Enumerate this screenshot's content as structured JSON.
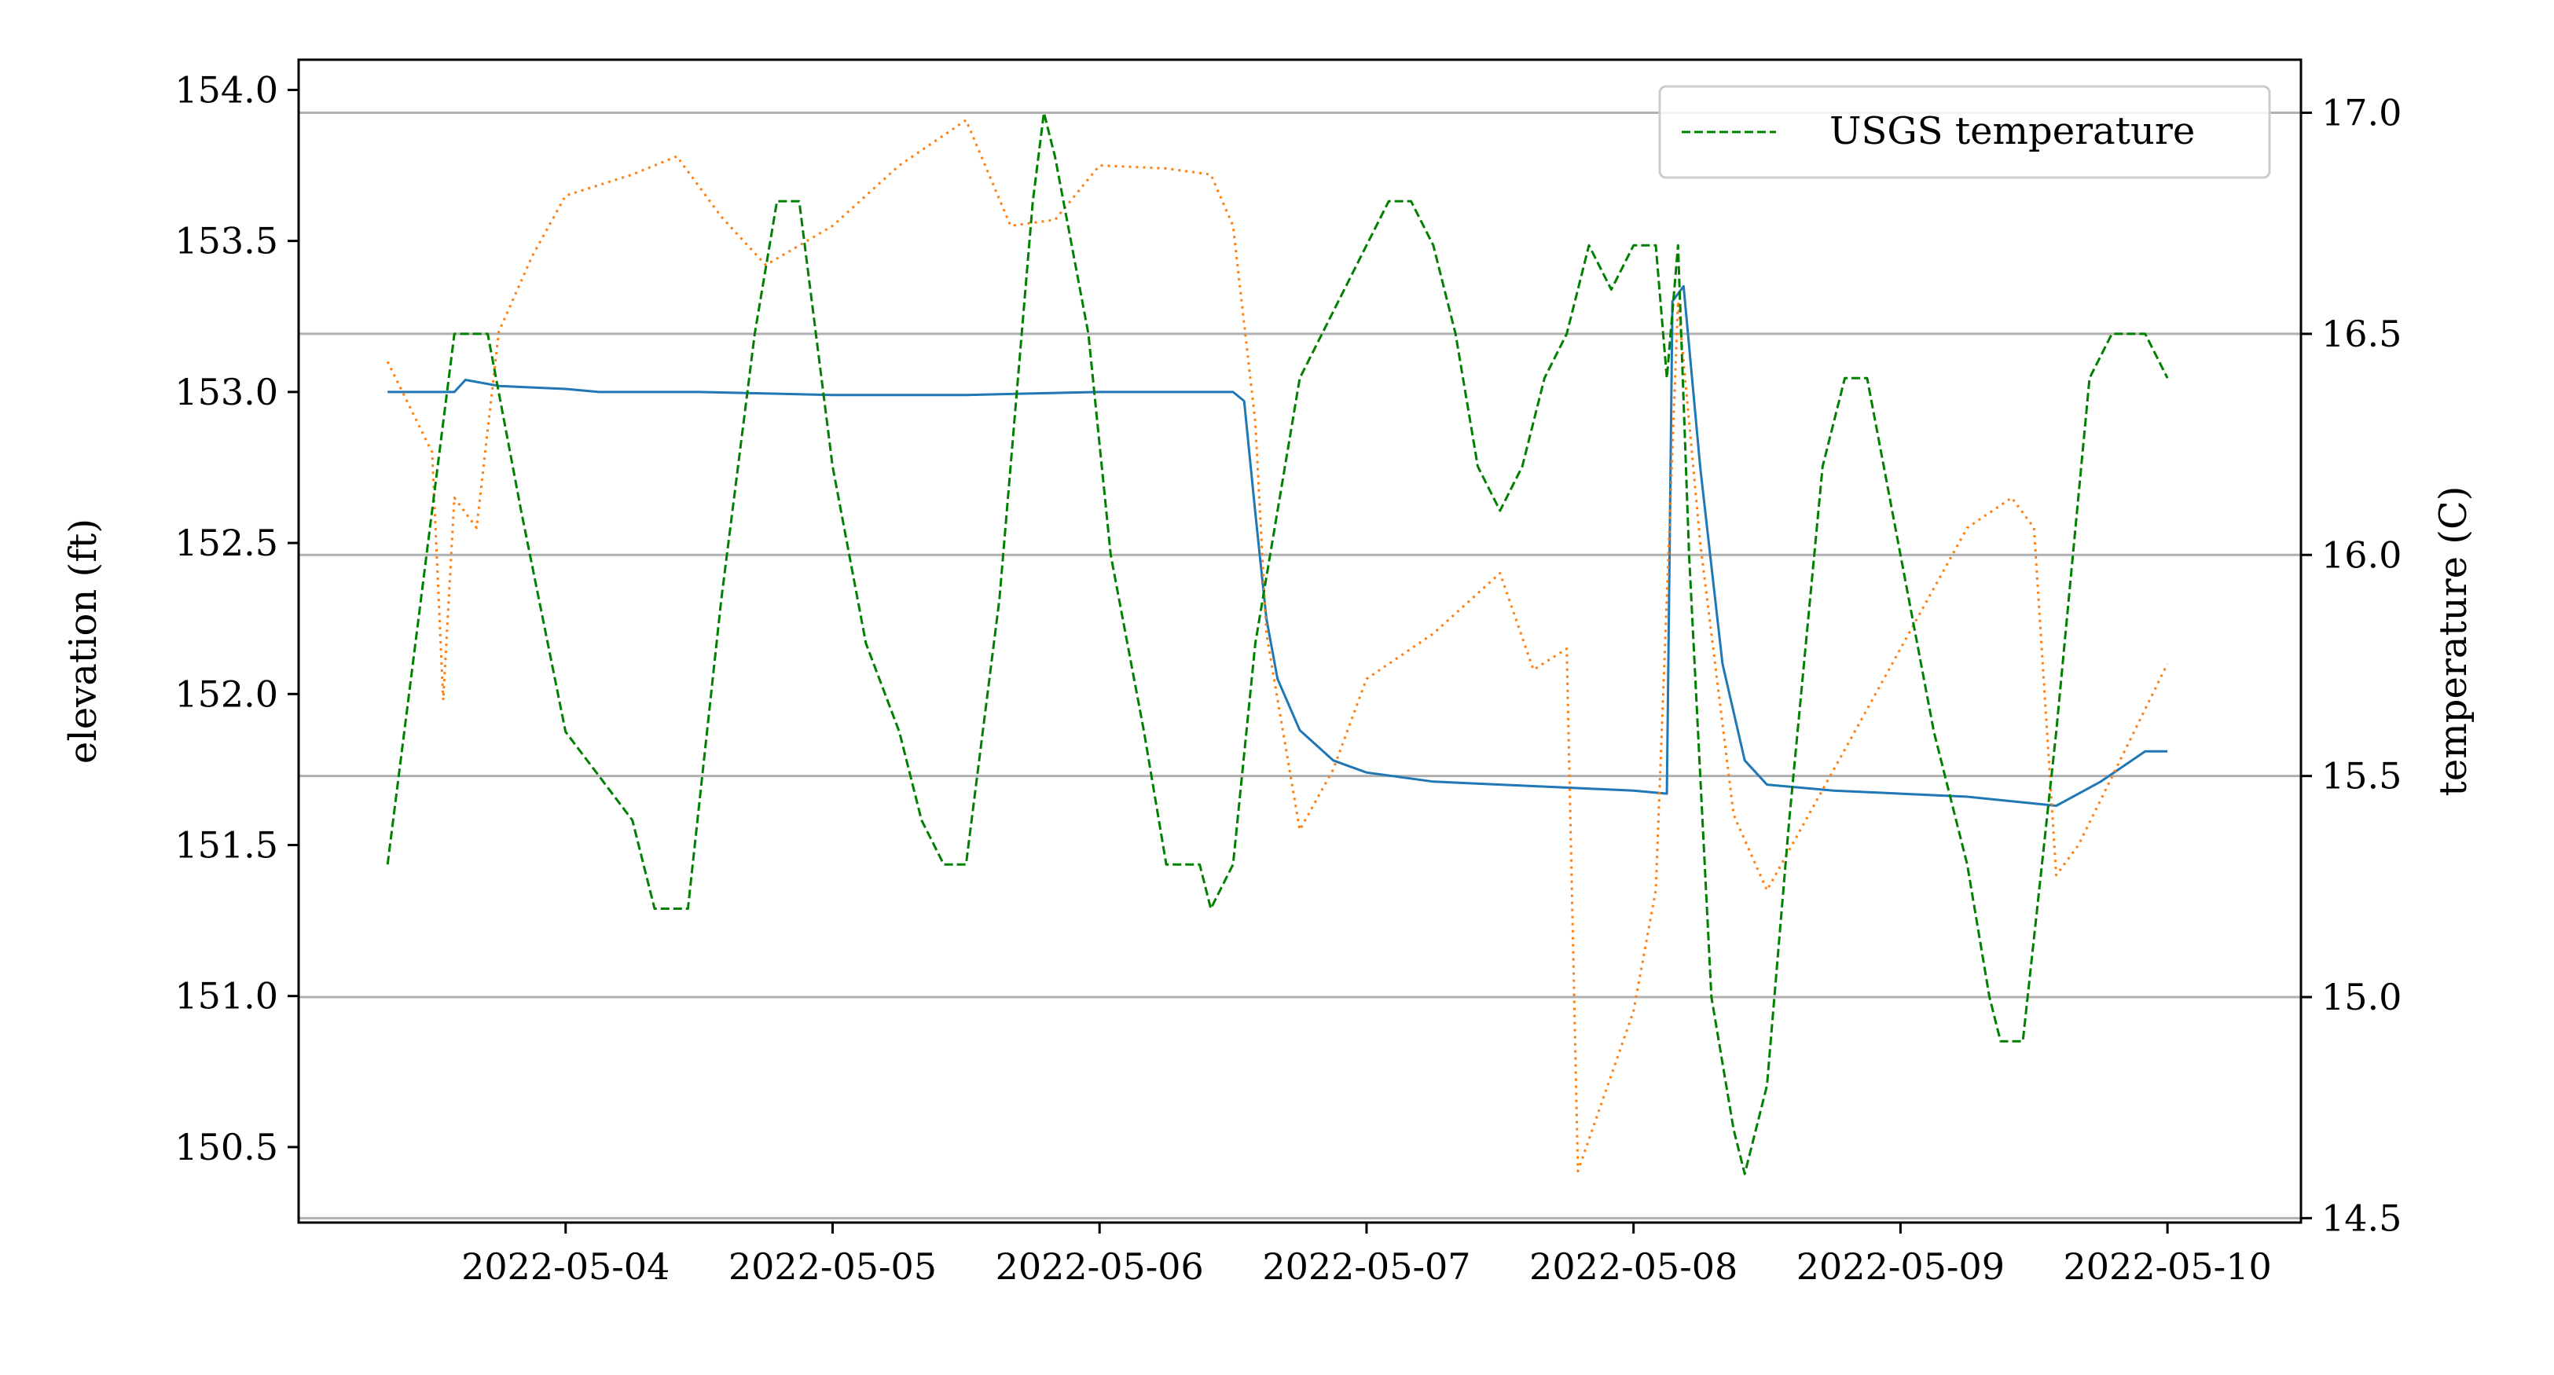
{
  "chart_data": {
    "type": "line",
    "x_axis": {
      "ticks": [
        "2022-05-04",
        "2022-05-05",
        "2022-05-06",
        "2022-05-07",
        "2022-05-08",
        "2022-05-09",
        "2022-05-10"
      ],
      "range": [
        "2022-05-03T00:00",
        "2022-05-10T12:00"
      ]
    },
    "y_left": {
      "label": "elevation (ft)",
      "ticks": [
        "150.5",
        "151.0",
        "151.5",
        "152.0",
        "152.5",
        "153.0",
        "153.5",
        "154.0"
      ],
      "range": [
        150.25,
        154.1
      ]
    },
    "y_right": {
      "label": "temperature (C)",
      "ticks": [
        "14.5",
        "15.0",
        "15.5",
        "16.0",
        "16.5",
        "17.0"
      ],
      "range": [
        14.49,
        17.12
      ]
    },
    "grid": "horizontal lines at right-axis ticks",
    "legend": {
      "position": "top-right",
      "entries": [
        "USGS temperature"
      ]
    },
    "colors": {
      "elevation": "#1f77b4",
      "second_series": "#ff7f0e",
      "usgs_temperature": "#008000",
      "grid": "#b0b0b0"
    },
    "series": [
      {
        "axis": "left",
        "style": "solid",
        "color": "#1f77b4",
        "points": [
          [
            "2022-05-03T08:00",
            153.0
          ],
          [
            "2022-05-03T14:00",
            153.0
          ],
          [
            "2022-05-03T15:00",
            153.04
          ],
          [
            "2022-05-03T18:00",
            153.02
          ],
          [
            "2022-05-04T00:00",
            153.01
          ],
          [
            "2022-05-04T03:00",
            153.0
          ],
          [
            "2022-05-04T12:00",
            153.0
          ],
          [
            "2022-05-05T00:00",
            152.99
          ],
          [
            "2022-05-05T12:00",
            152.99
          ],
          [
            "2022-05-06T00:00",
            153.0
          ],
          [
            "2022-05-06T12:00",
            153.0
          ],
          [
            "2022-05-06T13:00",
            152.97
          ],
          [
            "2022-05-06T14:00",
            152.6
          ],
          [
            "2022-05-06T15:00",
            152.25
          ],
          [
            "2022-05-06T16:00",
            152.05
          ],
          [
            "2022-05-06T18:00",
            151.88
          ],
          [
            "2022-05-06T21:00",
            151.78
          ],
          [
            "2022-05-07T00:00",
            151.74
          ],
          [
            "2022-05-07T06:00",
            151.71
          ],
          [
            "2022-05-07T12:00",
            151.7
          ],
          [
            "2022-05-07T18:00",
            151.69
          ],
          [
            "2022-05-08T00:00",
            151.68
          ],
          [
            "2022-05-08T03:00",
            151.67
          ],
          [
            "2022-05-08T03:30",
            153.3
          ],
          [
            "2022-05-08T04:30",
            153.35
          ],
          [
            "2022-05-08T06:00",
            152.75
          ],
          [
            "2022-05-08T08:00",
            152.1
          ],
          [
            "2022-05-08T10:00",
            151.78
          ],
          [
            "2022-05-08T12:00",
            151.7
          ],
          [
            "2022-05-08T18:00",
            151.68
          ],
          [
            "2022-05-09T00:00",
            151.67
          ],
          [
            "2022-05-09T06:00",
            151.66
          ],
          [
            "2022-05-09T14:00",
            151.63
          ],
          [
            "2022-05-09T18:00",
            151.71
          ],
          [
            "2022-05-09T22:00",
            151.81
          ],
          [
            "2022-05-10T00:00",
            151.81
          ]
        ]
      },
      {
        "axis": "left",
        "style": "dotted",
        "color": "#ff7f0e",
        "points": [
          [
            "2022-05-03T08:00",
            153.1
          ],
          [
            "2022-05-03T10:00",
            152.95
          ],
          [
            "2022-05-03T12:00",
            152.8
          ],
          [
            "2022-05-03T13:00",
            151.98
          ],
          [
            "2022-05-03T14:00",
            152.65
          ],
          [
            "2022-05-03T16:00",
            152.55
          ],
          [
            "2022-05-03T18:00",
            153.2
          ],
          [
            "2022-05-03T21:00",
            153.45
          ],
          [
            "2022-05-04T00:00",
            153.65
          ],
          [
            "2022-05-04T06:00",
            153.72
          ],
          [
            "2022-05-04T10:00",
            153.78
          ],
          [
            "2022-05-04T14:00",
            153.58
          ],
          [
            "2022-05-04T18:00",
            153.42
          ],
          [
            "2022-05-05T00:00",
            153.55
          ],
          [
            "2022-05-05T06:00",
            153.75
          ],
          [
            "2022-05-05T12:00",
            153.9
          ],
          [
            "2022-05-05T16:00",
            153.55
          ],
          [
            "2022-05-05T20:00",
            153.57
          ],
          [
            "2022-05-06T00:00",
            153.75
          ],
          [
            "2022-05-06T06:00",
            153.74
          ],
          [
            "2022-05-06T10:00",
            153.72
          ],
          [
            "2022-05-06T12:00",
            153.55
          ],
          [
            "2022-05-06T14:00",
            152.9
          ],
          [
            "2022-05-06T15:00",
            152.2
          ],
          [
            "2022-05-06T18:00",
            151.55
          ],
          [
            "2022-05-06T21:00",
            151.75
          ],
          [
            "2022-05-07T00:00",
            152.05
          ],
          [
            "2022-05-07T06:00",
            152.2
          ],
          [
            "2022-05-07T12:00",
            152.4
          ],
          [
            "2022-05-07T15:00",
            152.08
          ],
          [
            "2022-05-07T18:00",
            152.15
          ],
          [
            "2022-05-07T19:00",
            150.42
          ],
          [
            "2022-05-08T00:00",
            150.95
          ],
          [
            "2022-05-08T02:00",
            151.35
          ],
          [
            "2022-05-08T04:00",
            153.3
          ],
          [
            "2022-05-08T06:00",
            152.5
          ],
          [
            "2022-05-08T09:00",
            151.6
          ],
          [
            "2022-05-08T12:00",
            151.35
          ],
          [
            "2022-05-08T18:00",
            151.75
          ],
          [
            "2022-05-09T00:00",
            152.15
          ],
          [
            "2022-05-09T06:00",
            152.55
          ],
          [
            "2022-05-09T10:00",
            152.65
          ],
          [
            "2022-05-09T12:00",
            152.55
          ],
          [
            "2022-05-09T14:00",
            151.4
          ],
          [
            "2022-05-09T16:00",
            151.5
          ],
          [
            "2022-05-09T20:00",
            151.8
          ],
          [
            "2022-05-10T00:00",
            152.1
          ]
        ]
      },
      {
        "name": "USGS temperature",
        "axis": "right",
        "style": "dashed",
        "color": "#008000",
        "points": [
          [
            "2022-05-03T08:00",
            15.3
          ],
          [
            "2022-05-03T11:00",
            15.9
          ],
          [
            "2022-05-03T13:00",
            16.3
          ],
          [
            "2022-05-03T14:00",
            16.5
          ],
          [
            "2022-05-03T17:00",
            16.5
          ],
          [
            "2022-05-03T20:00",
            16.1
          ],
          [
            "2022-05-04T00:00",
            15.6
          ],
          [
            "2022-05-04T03:00",
            15.5
          ],
          [
            "2022-05-04T06:00",
            15.4
          ],
          [
            "2022-05-04T08:00",
            15.2
          ],
          [
            "2022-05-04T11:00",
            15.2
          ],
          [
            "2022-05-04T14:00",
            15.9
          ],
          [
            "2022-05-04T17:00",
            16.5
          ],
          [
            "2022-05-04T19:00",
            16.8
          ],
          [
            "2022-05-04T21:00",
            16.8
          ],
          [
            "2022-05-05T00:00",
            16.2
          ],
          [
            "2022-05-05T03:00",
            15.8
          ],
          [
            "2022-05-05T06:00",
            15.6
          ],
          [
            "2022-05-05T08:00",
            15.4
          ],
          [
            "2022-05-05T10:00",
            15.3
          ],
          [
            "2022-05-05T12:00",
            15.3
          ],
          [
            "2022-05-05T15:00",
            15.9
          ],
          [
            "2022-05-05T18:00",
            16.8
          ],
          [
            "2022-05-05T19:00",
            17.0
          ],
          [
            "2022-05-05T20:00",
            16.9
          ],
          [
            "2022-05-05T23:00",
            16.5
          ],
          [
            "2022-05-06T01:00",
            16.0
          ],
          [
            "2022-05-06T04:00",
            15.6
          ],
          [
            "2022-05-06T06:00",
            15.3
          ],
          [
            "2022-05-06T09:00",
            15.3
          ],
          [
            "2022-05-06T10:00",
            15.2
          ],
          [
            "2022-05-06T12:00",
            15.3
          ],
          [
            "2022-05-06T14:00",
            15.8
          ],
          [
            "2022-05-06T16:00",
            16.1
          ],
          [
            "2022-05-06T18:00",
            16.4
          ],
          [
            "2022-05-06T20:00",
            16.5
          ],
          [
            "2022-05-06T22:00",
            16.6
          ],
          [
            "2022-05-07T00:00",
            16.7
          ],
          [
            "2022-05-07T02:00",
            16.8
          ],
          [
            "2022-05-07T04:00",
            16.8
          ],
          [
            "2022-05-07T06:00",
            16.7
          ],
          [
            "2022-05-07T08:00",
            16.5
          ],
          [
            "2022-05-07T10:00",
            16.2
          ],
          [
            "2022-05-07T12:00",
            16.1
          ],
          [
            "2022-05-07T14:00",
            16.2
          ],
          [
            "2022-05-07T16:00",
            16.4
          ],
          [
            "2022-05-07T18:00",
            16.5
          ],
          [
            "2022-05-07T20:00",
            16.7
          ],
          [
            "2022-05-07T22:00",
            16.6
          ],
          [
            "2022-05-08T00:00",
            16.7
          ],
          [
            "2022-05-08T02:00",
            16.7
          ],
          [
            "2022-05-08T03:00",
            16.4
          ],
          [
            "2022-05-08T04:00",
            16.7
          ],
          [
            "2022-05-08T05:00",
            16.0
          ],
          [
            "2022-05-08T07:00",
            15.0
          ],
          [
            "2022-05-08T09:00",
            14.7
          ],
          [
            "2022-05-08T10:00",
            14.6
          ],
          [
            "2022-05-08T12:00",
            14.8
          ],
          [
            "2022-05-08T14:00",
            15.4
          ],
          [
            "2022-05-08T17:00",
            16.2
          ],
          [
            "2022-05-08T19:00",
            16.4
          ],
          [
            "2022-05-08T21:00",
            16.4
          ],
          [
            "2022-05-09T00:00",
            16.0
          ],
          [
            "2022-05-09T03:00",
            15.6
          ],
          [
            "2022-05-09T06:00",
            15.3
          ],
          [
            "2022-05-09T08:00",
            15.0
          ],
          [
            "2022-05-09T09:00",
            14.9
          ],
          [
            "2022-05-09T11:00",
            14.9
          ],
          [
            "2022-05-09T14:00",
            15.6
          ],
          [
            "2022-05-09T17:00",
            16.4
          ],
          [
            "2022-05-09T19:00",
            16.5
          ],
          [
            "2022-05-09T22:00",
            16.5
          ],
          [
            "2022-05-10T00:00",
            16.4
          ]
        ]
      }
    ]
  }
}
